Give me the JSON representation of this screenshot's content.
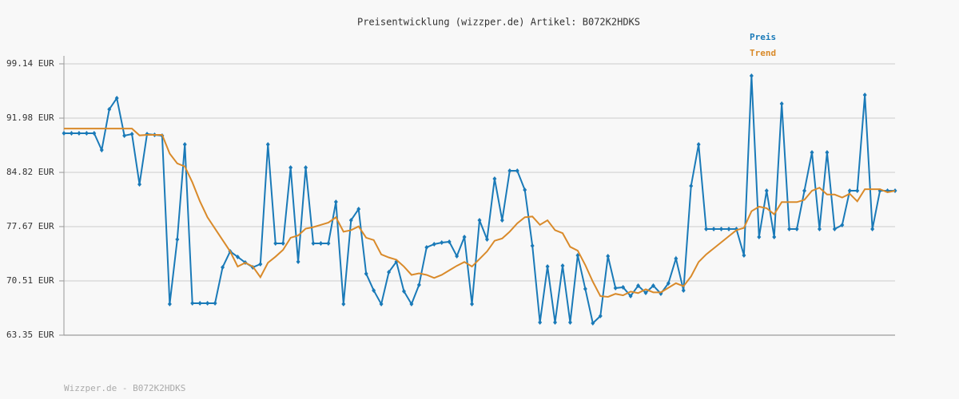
{
  "chart_data": {
    "type": "line",
    "title": "Preisentwicklung (wizzper.de) Artikel: B072K2HDKS",
    "footer": "Wizzper.de - B072K2HDKS",
    "ylim": [
      63.35,
      99.14
    ],
    "yticks": [
      {
        "value": 63.35,
        "label": "63.35 EUR"
      },
      {
        "value": 70.51,
        "label": "70.51 EUR"
      },
      {
        "value": 77.67,
        "label": "77.67 EUR"
      },
      {
        "value": 84.82,
        "label": "84.82 EUR"
      },
      {
        "value": 91.98,
        "label": "91.98 EUR"
      },
      {
        "value": 99.14,
        "label": "99.14 EUR"
      }
    ],
    "grid": true,
    "legend": "top-right",
    "series": [
      {
        "name": "Preis",
        "color": "#1a7ab8",
        "markers": true,
        "values": [
          89.98,
          89.98,
          89.98,
          89.98,
          89.98,
          87.77,
          93.14,
          94.61,
          89.67,
          89.88,
          83.25,
          89.88,
          89.77,
          89.67,
          67.45,
          75.98,
          88.51,
          67.56,
          67.56,
          67.56,
          67.56,
          72.3,
          74.4,
          73.67,
          72.93,
          72.3,
          72.72,
          88.51,
          75.46,
          75.46,
          85.46,
          73.03,
          85.46,
          75.46,
          75.46,
          75.46,
          80.93,
          67.45,
          78.51,
          79.98,
          71.46,
          69.25,
          67.45,
          71.67,
          73.03,
          69.14,
          67.45,
          69.98,
          74.93,
          75.35,
          75.56,
          75.67,
          73.77,
          76.3,
          67.45,
          78.51,
          75.98,
          83.98,
          78.51,
          85.03,
          85.03,
          82.51,
          75.14,
          65.03,
          72.4,
          65.03,
          72.51,
          65.03,
          73.88,
          69.46,
          64.93,
          65.88,
          73.77,
          69.56,
          69.67,
          68.51,
          69.88,
          68.93,
          69.88,
          68.83,
          70.19,
          73.46,
          69.25,
          83.04,
          88.51,
          77.35,
          77.35,
          77.35,
          77.35,
          77.35,
          73.88,
          97.56,
          76.3,
          82.4,
          76.3,
          93.88,
          77.35,
          77.35,
          82.4,
          87.46,
          77.35,
          87.46,
          77.35,
          77.88,
          82.4,
          82.4,
          95.03,
          77.35,
          82.4,
          82.4,
          82.4
        ]
      },
      {
        "name": "Trend",
        "color": "#d98a2a",
        "markers": false,
        "values": [
          90.6,
          90.6,
          90.6,
          90.6,
          90.6,
          90.6,
          90.6,
          90.6,
          90.6,
          90.6,
          89.7,
          89.77,
          89.77,
          89.77,
          87.3,
          86.0,
          85.6,
          83.5,
          81.0,
          78.9,
          77.4,
          75.9,
          74.4,
          72.4,
          72.9,
          72.4,
          71.0,
          72.9,
          73.7,
          74.6,
          76.2,
          76.5,
          77.4,
          77.6,
          77.9,
          78.2,
          78.9,
          77.0,
          77.2,
          77.7,
          76.2,
          75.9,
          74.0,
          73.6,
          73.3,
          72.4,
          71.3,
          71.5,
          71.3,
          70.9,
          71.3,
          71.9,
          72.5,
          73.0,
          72.4,
          73.4,
          74.4,
          75.8,
          76.1,
          77.0,
          78.1,
          78.9,
          79.0,
          77.9,
          78.5,
          77.2,
          76.8,
          75.0,
          74.5,
          72.6,
          70.4,
          68.5,
          68.4,
          68.8,
          68.6,
          69.1,
          68.9,
          69.4,
          69.0,
          69.0,
          69.6,
          70.2,
          69.8,
          71.1,
          73.0,
          74.0,
          74.8,
          75.6,
          76.4,
          77.2,
          77.5,
          79.7,
          80.3,
          80.1,
          79.3,
          80.9,
          80.9,
          80.9,
          81.2,
          82.4,
          82.8,
          81.9,
          81.9,
          81.5,
          82.0,
          81.0,
          82.6,
          82.6,
          82.6,
          82.2,
          82.4
        ]
      }
    ]
  }
}
